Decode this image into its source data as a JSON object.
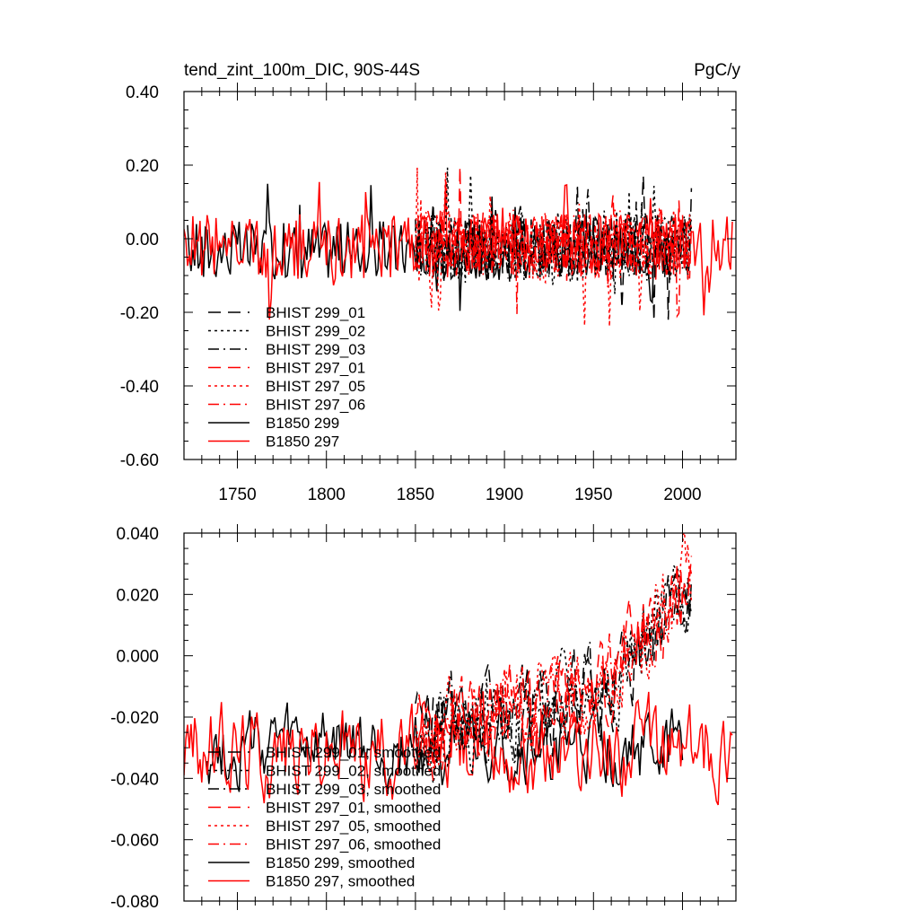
{
  "panels": [
    {
      "title": "tend_zint_100m_DIC, 90S-44S",
      "units": "PgC/y",
      "chart_data": {
        "type": "line",
        "xlim": [
          1720,
          2030
        ],
        "ylim": [
          -0.6,
          0.4
        ],
        "xticks": [
          1750,
          1800,
          1850,
          1900,
          1950,
          2000
        ],
        "yticks": [
          -0.6,
          -0.4,
          -0.2,
          0.0,
          0.2,
          0.4
        ],
        "ytick_labels": [
          "-0.60",
          "-0.40",
          "-0.20",
          "0.00",
          "0.20",
          "0.40"
        ],
        "xtick_labels": [
          "1750",
          "1800",
          "1850",
          "1900",
          "1950",
          "2000"
        ],
        "series": [
          {
            "name": "BHIST 299_01",
            "color": "#000000",
            "dash": "longdash",
            "x_range": [
              1850,
              2005
            ],
            "mean": -0.02,
            "amp": 0.09,
            "seed": 11
          },
          {
            "name": "BHIST 299_02",
            "color": "#000000",
            "dash": "dot",
            "x_range": [
              1850,
              2005
            ],
            "mean": -0.02,
            "amp": 0.1,
            "seed": 12
          },
          {
            "name": "BHIST 299_03",
            "color": "#000000",
            "dash": "dashdot",
            "x_range": [
              1850,
              2005
            ],
            "mean": -0.02,
            "amp": 0.09,
            "seed": 13
          },
          {
            "name": "BHIST 297_01",
            "color": "#ff0000",
            "dash": "longdash",
            "x_range": [
              1850,
              2005
            ],
            "mean": -0.01,
            "amp": 0.09,
            "seed": 14
          },
          {
            "name": "BHIST 297_05",
            "color": "#ff0000",
            "dash": "dot",
            "x_range": [
              1850,
              2005
            ],
            "mean": -0.02,
            "amp": 0.1,
            "seed": 15
          },
          {
            "name": "BHIST 297_06",
            "color": "#ff0000",
            "dash": "dashdot",
            "x_range": [
              1850,
              2005
            ],
            "mean": -0.01,
            "amp": 0.09,
            "seed": 16
          },
          {
            "name": "B1850 299",
            "color": "#000000",
            "dash": "solid",
            "x_range": [
              1722,
              1995
            ],
            "mean": -0.03,
            "amp": 0.08,
            "seed": 17
          },
          {
            "name": "B1850 297",
            "color": "#ff0000",
            "dash": "solid",
            "x_range": [
              1720,
              2028
            ],
            "mean": -0.02,
            "amp": 0.09,
            "seed": 18
          }
        ]
      }
    },
    {
      "title": "",
      "units": "",
      "chart_data": {
        "type": "line",
        "xlim": [
          1720,
          2030
        ],
        "ylim": [
          -0.08,
          0.04
        ],
        "xticks": [
          1750,
          1800,
          1850,
          1900,
          1950,
          2000
        ],
        "yticks": [
          -0.08,
          -0.06,
          -0.04,
          -0.02,
          0.0,
          0.02,
          0.04
        ],
        "ytick_labels": [
          "-0.080",
          "-0.060",
          "-0.040",
          "-0.020",
          "0.000",
          "0.020",
          "0.040"
        ],
        "series": [
          {
            "name": "BHIST 299_01, smoothed",
            "color": "#000000",
            "dash": "longdash",
            "x_range": [
              1850,
              2005
            ],
            "mean": -0.025,
            "trend": 0.00012,
            "amp": 0.012,
            "seed": 21
          },
          {
            "name": "BHIST 299_02, smoothed",
            "color": "#000000",
            "dash": "dot",
            "x_range": [
              1850,
              2005
            ],
            "mean": -0.025,
            "trend": 0.00012,
            "amp": 0.012,
            "seed": 22
          },
          {
            "name": "BHIST 299_03, smoothed",
            "color": "#000000",
            "dash": "dashdot",
            "x_range": [
              1850,
              2005
            ],
            "mean": -0.025,
            "trend": 0.00012,
            "amp": 0.012,
            "seed": 23
          },
          {
            "name": "BHIST 297_01, smoothed",
            "color": "#ff0000",
            "dash": "longdash",
            "x_range": [
              1850,
              2005
            ],
            "mean": -0.025,
            "trend": 0.00014,
            "amp": 0.012,
            "seed": 24
          },
          {
            "name": "BHIST 297_05, smoothed",
            "color": "#ff0000",
            "dash": "dot",
            "x_range": [
              1850,
              2005
            ],
            "mean": -0.025,
            "trend": 0.00014,
            "amp": 0.012,
            "seed": 25
          },
          {
            "name": "BHIST 297_06, smoothed",
            "color": "#ff0000",
            "dash": "dashdot",
            "x_range": [
              1850,
              2005
            ],
            "mean": -0.025,
            "trend": 0.00014,
            "amp": 0.012,
            "seed": 26
          },
          {
            "name": "B1850 299, smoothed",
            "color": "#000000",
            "dash": "solid",
            "x_range": [
              1733,
              2000
            ],
            "mean": -0.03,
            "trend": 0.0,
            "amp": 0.011,
            "seed": 27
          },
          {
            "name": "B1850 297, smoothed",
            "color": "#ff0000",
            "dash": "solid",
            "x_range": [
              1720,
              2028
            ],
            "mean": -0.03,
            "trend": 0.0,
            "amp": 0.013,
            "seed": 28
          }
        ]
      }
    }
  ]
}
